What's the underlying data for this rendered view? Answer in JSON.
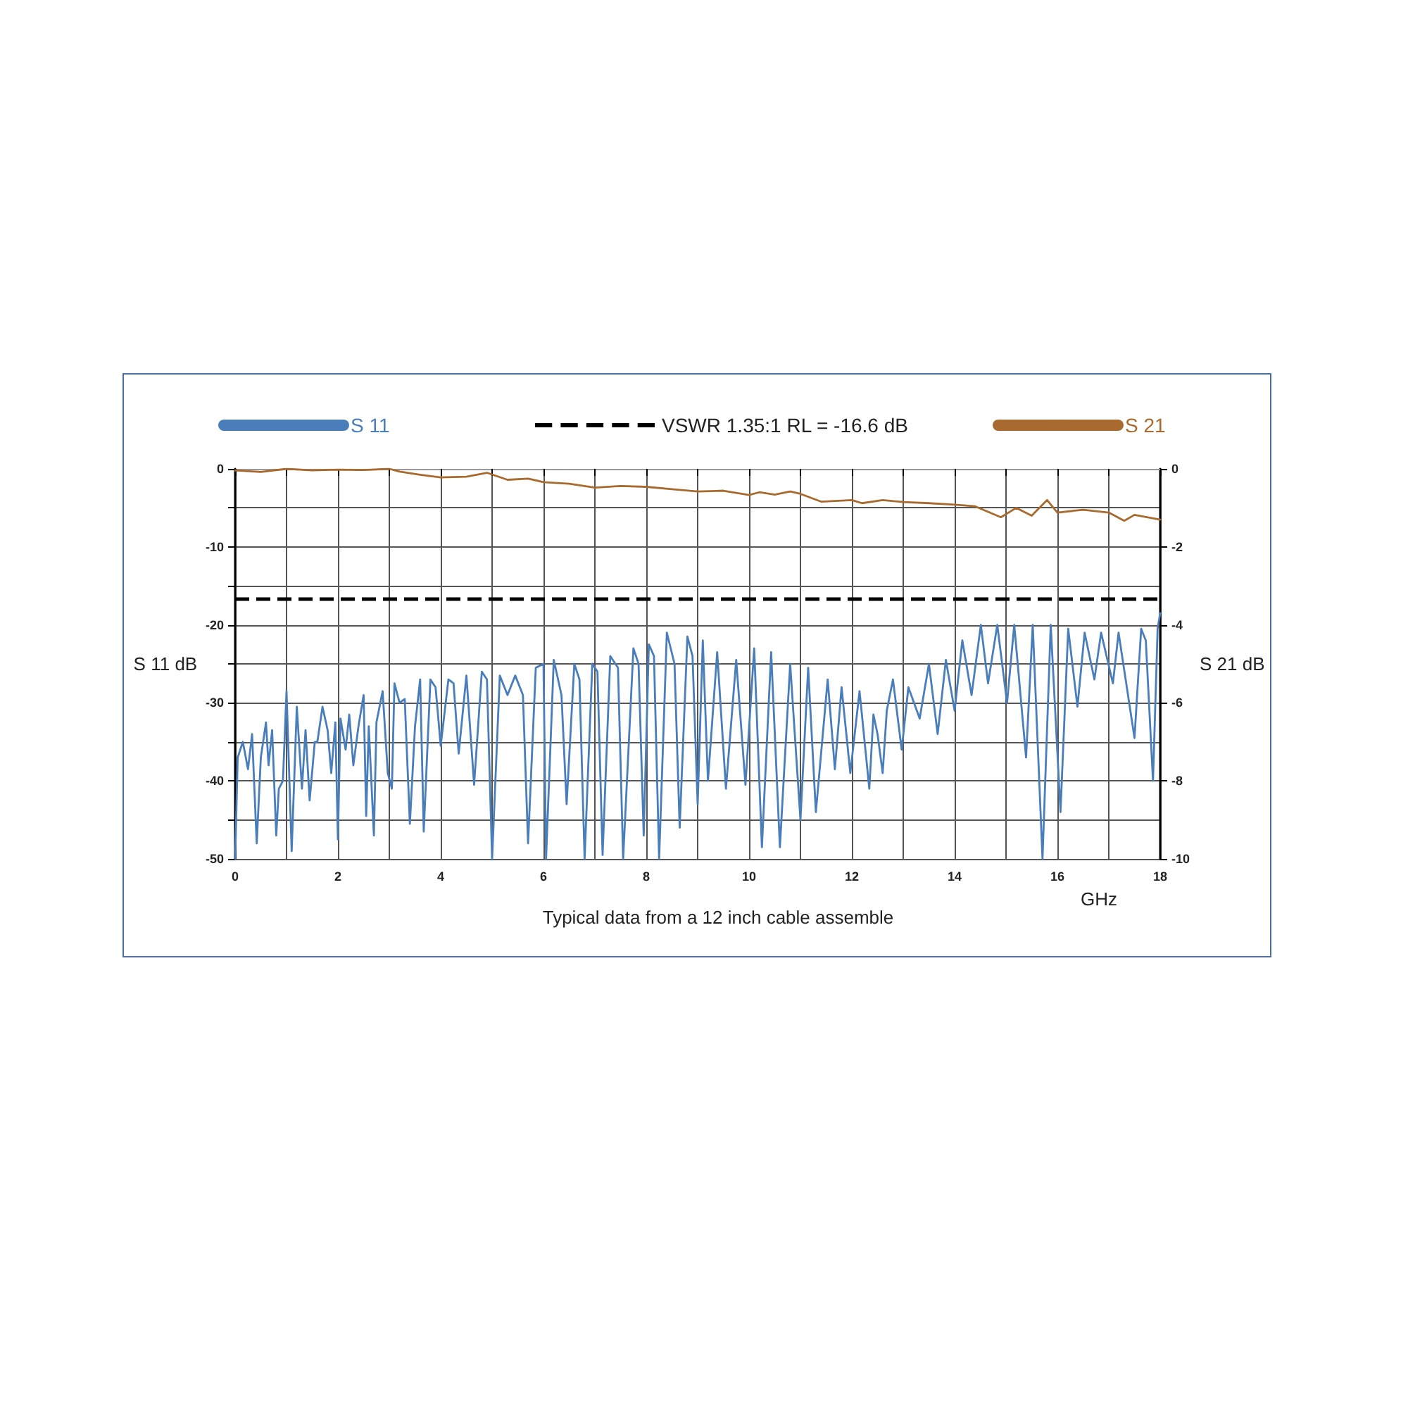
{
  "chart_data": {
    "type": "line",
    "xlabel": "GHz",
    "ylabel": "S 11 dB",
    "y2label": "S 21 dB",
    "annotations": [
      "Typical data from a 12 inch cable assemble"
    ],
    "xlim": [
      0,
      18
    ],
    "xticks": [
      0,
      {
        "value": 1,
        "label": null
      },
      2,
      {
        "value": 3,
        "label": null
      },
      4,
      {
        "value": 5,
        "label": null
      },
      6,
      {
        "value": 7,
        "label": null
      },
      8,
      {
        "value": 9,
        "label": null
      },
      10,
      {
        "value": 11,
        "label": null
      },
      12,
      {
        "value": 13,
        "label": null
      },
      14,
      {
        "value": 15,
        "label": null
      },
      16,
      {
        "value": 17,
        "label": null
      },
      18
    ],
    "ylim": [
      -50,
      0
    ],
    "yticks": [
      -50,
      {
        "value": -45,
        "label": null
      },
      -40,
      {
        "value": -35,
        "label": null
      },
      -30,
      {
        "value": -25,
        "label": null
      },
      -20,
      {
        "value": -15,
        "label": null
      },
      -10,
      {
        "value": -5,
        "label": null
      },
      0
    ],
    "y2lim": [
      -10,
      0
    ],
    "y2ticks": [
      -10,
      -8,
      -6,
      -4,
      -2,
      0
    ],
    "grid": true,
    "legend": "top",
    "marker": "none",
    "ref_lines": [
      {
        "axis": "y",
        "value": -16.6,
        "label": "VSWR 1.35:1 RL = -16.6 dB",
        "color": "#000000",
        "line_style": "dashed"
      }
    ],
    "series": [
      {
        "name": "S 11",
        "color": "#4a7ebb",
        "x": [
          0,
          0.05,
          0.15,
          0.25,
          0.33,
          0.42,
          0.5,
          0.6,
          0.65,
          0.72,
          0.8,
          0.85,
          0.93,
          1.0,
          1.1,
          1.2,
          1.3,
          1.37,
          1.45,
          1.55,
          1.6,
          1.7,
          1.8,
          1.87,
          1.95,
          2.0,
          2.05,
          2.15,
          2.22,
          2.3,
          2.4,
          2.5,
          2.55,
          2.6,
          2.7,
          2.75,
          2.87,
          2.97,
          3.05,
          3.1,
          3.2,
          3.3,
          3.4,
          3.5,
          3.6,
          3.67,
          3.8,
          3.9,
          4.0,
          4.15,
          4.25,
          4.35,
          4.5,
          4.65,
          4.8,
          4.9,
          5.0,
          5.15,
          5.3,
          5.45,
          5.6,
          5.7,
          5.85,
          6.0,
          6.05,
          6.2,
          6.35,
          6.45,
          6.6,
          6.7,
          6.8,
          6.95,
          7.05,
          7.15,
          7.3,
          7.45,
          7.55,
          7.75,
          7.85,
          7.95,
          8.05,
          8.15,
          8.25,
          8.4,
          8.55,
          8.65,
          8.8,
          8.9,
          9.0,
          9.1,
          9.2,
          9.38,
          9.55,
          9.75,
          9.93,
          10.1,
          10.25,
          10.43,
          10.6,
          10.8,
          11.0,
          11.15,
          11.3,
          11.53,
          11.67,
          11.8,
          11.97,
          12.15,
          12.34,
          12.42,
          12.5,
          12.6,
          12.68,
          12.8,
          12.97,
          13.1,
          13.32,
          13.5,
          13.67,
          13.83,
          14.0,
          14.15,
          14.33,
          14.51,
          14.65,
          14.83,
          15.02,
          15.16,
          15.39,
          15.52,
          15.71,
          15.87,
          16.06,
          16.21,
          16.39,
          16.53,
          16.72,
          16.85,
          17.08,
          17.19,
          17.5,
          17.63,
          17.72,
          17.86,
          17.95,
          18.0
        ],
        "values": [
          -50,
          -37,
          -35,
          -38.5,
          -34,
          -48,
          -37,
          -32.5,
          -38,
          -33.5,
          -47,
          -41,
          -40,
          -28.5,
          -49,
          -30.5,
          -41,
          -33.5,
          -42.5,
          -35,
          -35,
          -30.5,
          -33.5,
          -39,
          -32.5,
          -47.5,
          -32,
          -36,
          -31.5,
          -38,
          -33,
          -29,
          -44.5,
          -33,
          -47,
          -32.5,
          -28.5,
          -39,
          -41,
          -27.5,
          -30,
          -29.5,
          -45.5,
          -33,
          -27,
          -46.5,
          -27,
          -28,
          -35.5,
          -27,
          -27.5,
          -36.5,
          -26.5,
          -40.5,
          -26,
          -27,
          -50,
          -26.5,
          -29,
          -26.5,
          -29,
          -48,
          -25.5,
          -25,
          -50,
          -24.5,
          -29,
          -43,
          -25,
          -27,
          -50,
          -25,
          -26,
          -49.5,
          -24,
          -25.5,
          -50,
          -23,
          -25,
          -47,
          -22.5,
          -24,
          -50,
          -21,
          -25,
          -46,
          -21.5,
          -24,
          -43,
          -22,
          -40,
          -23.5,
          -41,
          -24.5,
          -40.5,
          -23,
          -48.5,
          -23.5,
          -48.5,
          -25,
          -45,
          -25.5,
          -44,
          -27,
          -38.5,
          -28,
          -39,
          -28.5,
          -41,
          -31.5,
          -34,
          -39,
          -31,
          -27,
          -36,
          -28,
          -32,
          -25,
          -34,
          -24.5,
          -31,
          -22,
          -29,
          -20,
          -27.5,
          -20,
          -30,
          -20,
          -37,
          -20,
          -50,
          -20,
          -44,
          -20.5,
          -30.5,
          -21,
          -27,
          -21,
          -27.5,
          -21,
          -34.5,
          -20.5,
          -22,
          -40,
          -20.5,
          -18.5
        ]
      },
      {
        "name": "S 21",
        "color": "#a86a2e",
        "axis": "y2",
        "x": [
          0,
          0.5,
          1,
          1.5,
          2,
          2.5,
          3,
          3.2,
          3.6,
          4,
          4.5,
          4.9,
          5.3,
          5.7,
          6,
          6.5,
          7,
          7.5,
          8,
          8.5,
          9,
          9.5,
          10,
          10.2,
          10.5,
          10.8,
          11,
          11.4,
          12,
          12.2,
          12.6,
          13,
          13.5,
          14,
          14.4,
          14.9,
          15.2,
          15.5,
          15.8,
          16,
          16.5,
          17,
          17.3,
          17.5,
          18
        ],
        "values": [
          -0.04,
          -0.08,
          0,
          -0.04,
          -0.02,
          -0.03,
          0,
          -0.07,
          -0.15,
          -0.22,
          -0.2,
          -0.1,
          -0.28,
          -0.25,
          -0.34,
          -0.38,
          -0.48,
          -0.44,
          -0.46,
          -0.52,
          -0.58,
          -0.56,
          -0.67,
          -0.6,
          -0.66,
          -0.58,
          -0.64,
          -0.84,
          -0.8,
          -0.88,
          -0.8,
          -0.85,
          -0.88,
          -0.92,
          -0.96,
          -1.24,
          -1.0,
          -1.2,
          -0.8,
          -1.12,
          -1.05,
          -1.12,
          -1.33,
          -1.18,
          -1.3
        ]
      }
    ]
  }
}
